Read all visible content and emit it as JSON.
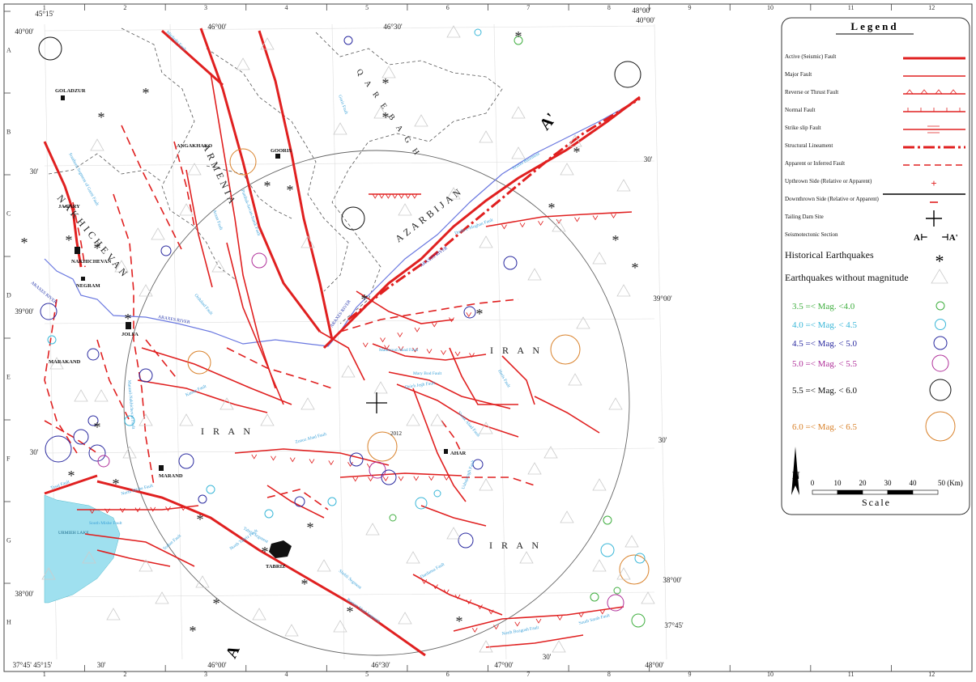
{
  "grid": {
    "columns": [
      "1",
      "2",
      "3",
      "4",
      "5",
      "6",
      "7",
      "8",
      "9",
      "10",
      "11",
      "12"
    ],
    "rows": [
      "A",
      "B",
      "C",
      "D",
      "E",
      "F",
      "G",
      "H"
    ]
  },
  "coordinates": {
    "top": [
      "45°15'",
      "46°00'",
      "46°30'",
      "48°00'"
    ],
    "bottom": [
      "37°45' 45°15'",
      "30'",
      "46°00'",
      "46°30'",
      "47°00'",
      "30'",
      "48°00'"
    ],
    "left": [
      "40°00'",
      "30'",
      "39°00'",
      "30'",
      "38°00'"
    ],
    "right": [
      "40°00'",
      "30'",
      "39°00'",
      "30'",
      "38°00'",
      "37°45'"
    ]
  },
  "regions": {
    "armenia": "ARMENIA",
    "nakhichevan": "NAKHICHEVAN",
    "azarbijan": "AZARBIJAN",
    "qarebagh": "Q A R E B A G H",
    "iran_west": "I R A N",
    "iran_east": "I R A N",
    "iran_south": "I R A N"
  },
  "towns": {
    "goladzur": "GOLADZUR",
    "angakhako": "ANGAKHAKO",
    "gooris": "GOORIS",
    "jagary": "JAGARY",
    "nakhichevan": "NAKHICHEVAN",
    "negram": "NEGRAM",
    "jolfa": "JOLFA",
    "marakand": "MARAKAND",
    "marand": "MARAND",
    "ahar": "AHAR",
    "tabriz": "TABRIZ"
  },
  "rivers": {
    "araxes1": "ARAXES RIVER",
    "araxes2": "ARAXES RIVER",
    "araxes3": "ARAXES RIVER",
    "araxes4": "ARAXES RIVER"
  },
  "faults": {
    "mahmoud_abad": "Mahmoud Abad Fault",
    "mary_bod": "Mary Bod Fault",
    "qoich_jegh": "Qoich Jegh Fault",
    "zonoz_abad": "Zonoz Abad Fault",
    "kamar": "Kamar Fault",
    "north_mishe": "North Mishe Fault",
    "south_mishe": "South Mishe Fault",
    "sofian": "Sofian Fault",
    "north_tabriz": "North Tabriz Fault",
    "tabriz_segment": "Tabriz Segment",
    "bostan_abad": "Bostan Abad Segment",
    "shebli": "Shebli Segment",
    "dardansa": "Dardansa Fault",
    "south_sarab": "South Sarab Fault",
    "north_bozgush": "North Bozgush Fault",
    "ushajaragh": "Ushajaragh Fault",
    "vanak_abad": "Vanak Abad Fault",
    "heris": "Heris Fault",
    "araxes_basement": "Araxes Basement",
    "dashi_moghan": "Dasht-e-Moghan Fault",
    "pambak": "Pambak-Sevan-Sunik Fault",
    "ordubad": "Ordubad Fault",
    "goris": "Goris Fault",
    "arzan": "Arzan Fault",
    "tasuj": "Tasuj Fault",
    "nakh_seg": "Southern Segment of Garni Fault",
    "marand_n": "Marand-Nakhichevan Fault",
    "mirdasht": "Mirdasht Fault"
  },
  "misc": {
    "year_2012": "2012",
    "section_a": "A",
    "section_a_prime": "A'",
    "lake": "URMIEH LAKE"
  },
  "legend": {
    "title": "Legend",
    "items": [
      "Active (Seismic) Fault",
      "Major Fault",
      "Reverse or Thrust Fault",
      "Normal Fault",
      "Strike slip Fault",
      "Structural Lineament",
      "Apparent or Inferred Fault",
      "Upthrown Side (Relative or Apparent)",
      "Downthrown Side (Relative or Apparent)",
      "Tailing Dam Site",
      "Seismotectonic Section"
    ],
    "historical": "Historical Earthquakes",
    "no_magnitude": "Earthquakes without magnitude",
    "section_a": "A",
    "section_a_prime": "A'",
    "magnitudes": [
      {
        "label": "3.5   =< Mag. <4.0",
        "color": "#3fae3f"
      },
      {
        "label": "4.0 =< Mag. < 4.5",
        "color": "#3ab7d8"
      },
      {
        "label": "4.5 =< Mag. < 5.0",
        "color": "#2a2aa0"
      },
      {
        "label": "5.0 =< Mag. < 5.5",
        "color": "#b0309a"
      },
      {
        "label": "5.5 =< Mag. < 6.0",
        "color": "#111111"
      },
      {
        "label": "6.0 =< Mag. < 6.5",
        "color": "#d9822b"
      }
    ],
    "scale_ticks": [
      "0",
      "10",
      "20",
      "30",
      "40",
      "50 (Km)"
    ],
    "scale_label": "Scale",
    "north": "N"
  },
  "colors": {
    "fault": "#e02020",
    "river": "#5a6ad8",
    "fault_label": "#3aa0d8",
    "lake": "#7fd4e8"
  }
}
